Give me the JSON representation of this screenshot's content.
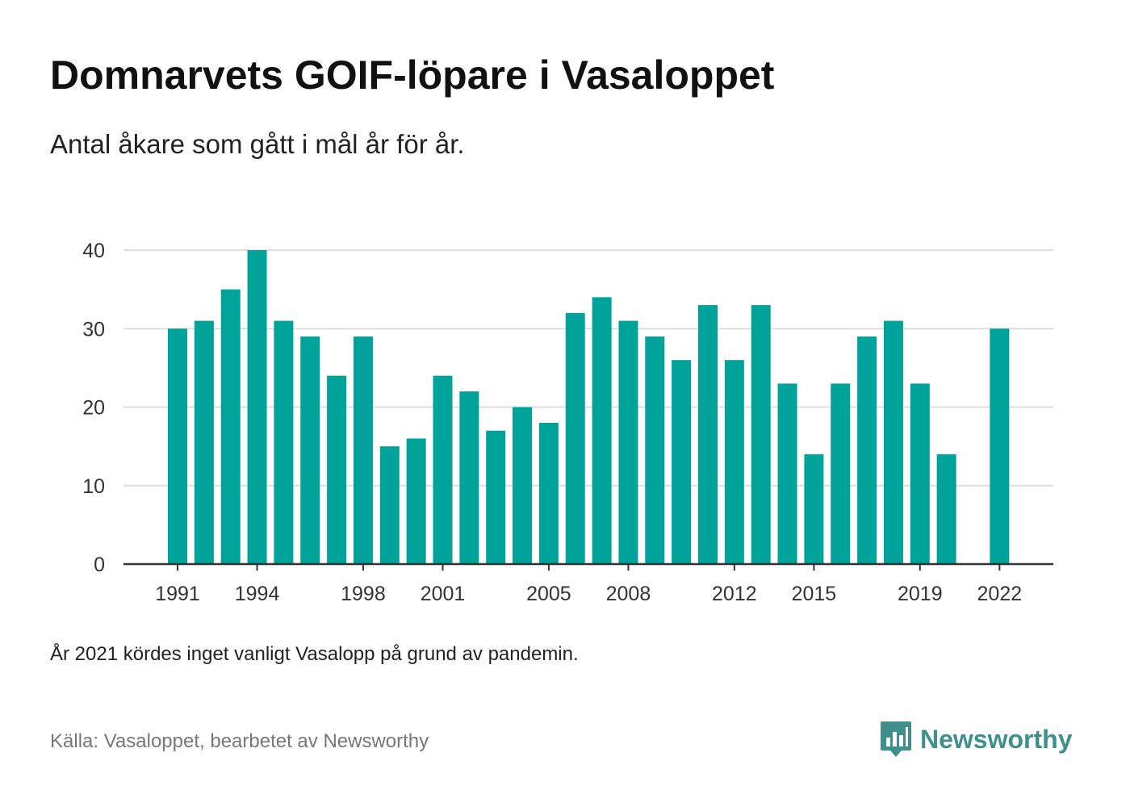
{
  "title": "Domnarvets GOIF-löpare i Vasaloppet",
  "subtitle": "Antal åkare som gått i mål år för år.",
  "note": "År 2021 kördes inget vanligt Vasalopp på grund av pandemin.",
  "source": "Källa: Vasaloppet, bearbetet av Newsworthy",
  "logo": {
    "text": "Newsworthy",
    "icon": "newsworthy-chart-logo-icon"
  },
  "colors": {
    "bar": "#00a39a",
    "grid": "#dddddd",
    "axis": "#333333",
    "logo": "#3f8f8a"
  },
  "chart_data": {
    "type": "bar",
    "categories": [
      "1991",
      "1992",
      "1993",
      "1994",
      "1995",
      "1996",
      "1997",
      "1998",
      "1999",
      "2000",
      "2001",
      "2002",
      "2003",
      "2004",
      "2005",
      "2006",
      "2007",
      "2008",
      "2009",
      "2010",
      "2011",
      "2012",
      "2013",
      "2014",
      "2015",
      "2016",
      "2017",
      "2018",
      "2019",
      "2020",
      "2021",
      "2022"
    ],
    "values": [
      30,
      31,
      35,
      40,
      31,
      29,
      24,
      29,
      15,
      16,
      24,
      22,
      17,
      20,
      18,
      32,
      34,
      31,
      29,
      26,
      33,
      26,
      33,
      23,
      14,
      23,
      29,
      31,
      23,
      14,
      null,
      30
    ],
    "x_tick_labels": [
      "1991",
      "1994",
      "1998",
      "2001",
      "2005",
      "2008",
      "2012",
      "2015",
      "2019",
      "2022"
    ],
    "y_ticks": [
      0,
      10,
      20,
      30,
      40
    ],
    "ylim": [
      0,
      40
    ],
    "grid": true,
    "legend": "none",
    "xlabel": "",
    "ylabel": ""
  }
}
